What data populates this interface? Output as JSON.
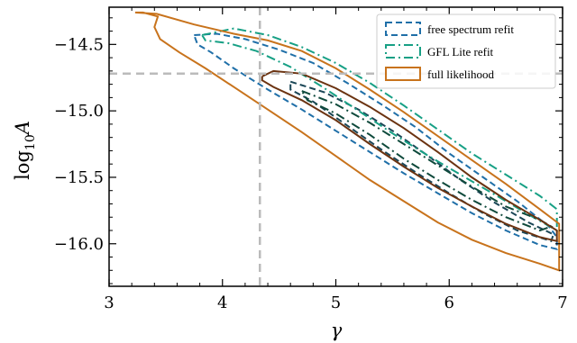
{
  "chart_data": {
    "type": "line",
    "title": "",
    "xlabel": "γ",
    "ylabel_base": "log",
    "ylabel_sub": "10",
    "ylabel_var": "A",
    "xlim": [
      3.0,
      7.0
    ],
    "ylim": [
      -16.32,
      -14.22
    ],
    "xticks": [
      3,
      4,
      5,
      6,
      7
    ],
    "xtick_labels": [
      "3",
      "4",
      "5",
      "6",
      "7"
    ],
    "yticks": [
      -14.5,
      -15.0,
      -15.5,
      -16.0
    ],
    "ytick_labels": [
      "−14.5",
      "−15.0",
      "−15.5",
      "−16.0"
    ],
    "grid": false,
    "legend_position": "top-right",
    "reference_lines": {
      "gamma": 4.33,
      "log10A": -14.72,
      "color": "#bbbbbb"
    },
    "series": [
      {
        "name": "free spectrum refit",
        "line_style": "dashed",
        "colors": [
          "#1f6fa8",
          "#1a4656"
        ],
        "contours": [
          [
            [
              3.75,
              -14.43
            ],
            [
              3.95,
              -14.42
            ],
            [
              4.2,
              -14.46
            ],
            [
              4.5,
              -14.54
            ],
            [
              4.8,
              -14.64
            ],
            [
              5.1,
              -14.79
            ],
            [
              5.4,
              -14.95
            ],
            [
              5.7,
              -15.12
            ],
            [
              6.0,
              -15.32
            ],
            [
              6.3,
              -15.5
            ],
            [
              6.6,
              -15.68
            ],
            [
              6.88,
              -15.87
            ],
            [
              6.95,
              -15.95
            ],
            [
              6.95,
              -16.04
            ],
            [
              6.8,
              -16.01
            ],
            [
              6.5,
              -15.9
            ],
            [
              6.2,
              -15.77
            ],
            [
              5.9,
              -15.62
            ],
            [
              5.6,
              -15.47
            ],
            [
              5.3,
              -15.31
            ],
            [
              5.0,
              -15.15
            ],
            [
              4.7,
              -14.99
            ],
            [
              4.4,
              -14.84
            ],
            [
              4.1,
              -14.68
            ],
            [
              3.9,
              -14.56
            ],
            [
              3.78,
              -14.5
            ],
            [
              3.75,
              -14.43
            ]
          ],
          [
            [
              4.6,
              -14.78
            ],
            [
              4.9,
              -14.86
            ],
            [
              5.2,
              -14.99
            ],
            [
              5.5,
              -15.15
            ],
            [
              5.8,
              -15.33
            ],
            [
              6.1,
              -15.52
            ],
            [
              6.4,
              -15.69
            ],
            [
              6.7,
              -15.84
            ],
            [
              6.92,
              -15.93
            ],
            [
              6.9,
              -15.98
            ],
            [
              6.6,
              -15.9
            ],
            [
              6.3,
              -15.77
            ],
            [
              6.0,
              -15.62
            ],
            [
              5.7,
              -15.46
            ],
            [
              5.4,
              -15.29
            ],
            [
              5.1,
              -15.11
            ],
            [
              4.8,
              -14.93
            ],
            [
              4.6,
              -14.84
            ],
            [
              4.6,
              -14.78
            ]
          ]
        ]
      },
      {
        "name": "GFL Lite refit",
        "line_style": "dashdot",
        "colors": [
          "#17a085",
          "#0f4a3c"
        ],
        "contours": [
          [
            [
              3.82,
              -14.43
            ],
            [
              4.1,
              -14.38
            ],
            [
              4.4,
              -14.43
            ],
            [
              4.7,
              -14.52
            ],
            [
              5.0,
              -14.64
            ],
            [
              5.3,
              -14.79
            ],
            [
              5.6,
              -14.96
            ],
            [
              5.9,
              -15.14
            ],
            [
              6.2,
              -15.32
            ],
            [
              6.5,
              -15.48
            ],
            [
              6.8,
              -15.64
            ],
            [
              6.95,
              -15.74
            ],
            [
              6.95,
              -15.9
            ],
            [
              6.7,
              -15.78
            ],
            [
              6.4,
              -15.63
            ],
            [
              6.1,
              -15.48
            ],
            [
              5.8,
              -15.33
            ],
            [
              5.5,
              -15.17
            ],
            [
              5.2,
              -15.0
            ],
            [
              4.9,
              -14.83
            ],
            [
              4.6,
              -14.67
            ],
            [
              4.3,
              -14.55
            ],
            [
              4.05,
              -14.49
            ],
            [
              3.85,
              -14.47
            ],
            [
              3.82,
              -14.43
            ]
          ],
          [
            [
              4.7,
              -14.85
            ],
            [
              5.0,
              -14.95
            ],
            [
              5.3,
              -15.09
            ],
            [
              5.6,
              -15.25
            ],
            [
              5.9,
              -15.41
            ],
            [
              6.2,
              -15.57
            ],
            [
              6.5,
              -15.72
            ],
            [
              6.8,
              -15.82
            ],
            [
              6.9,
              -15.87
            ],
            [
              6.8,
              -15.9
            ],
            [
              6.5,
              -15.8
            ],
            [
              6.2,
              -15.67
            ],
            [
              5.9,
              -15.52
            ],
            [
              5.6,
              -15.36
            ],
            [
              5.3,
              -15.18
            ],
            [
              5.0,
              -15.02
            ],
            [
              4.75,
              -14.92
            ],
            [
              4.7,
              -14.85
            ]
          ]
        ]
      },
      {
        "name": "full likelihood",
        "line_style": "solid",
        "colors": [
          "#c8731c",
          "#6b3311"
        ],
        "contours": [
          [
            [
              3.23,
              -14.26
            ],
            [
              3.42,
              -14.27
            ],
            [
              3.75,
              -14.35
            ],
            [
              4.1,
              -14.42
            ],
            [
              4.4,
              -14.47
            ],
            [
              4.7,
              -14.55
            ],
            [
              5.0,
              -14.68
            ],
            [
              5.3,
              -14.84
            ],
            [
              5.6,
              -15.01
            ],
            [
              5.9,
              -15.19
            ],
            [
              6.2,
              -15.37
            ],
            [
              6.5,
              -15.55
            ],
            [
              6.8,
              -15.74
            ],
            [
              6.97,
              -15.85
            ],
            [
              6.97,
              -16.2
            ],
            [
              6.8,
              -16.15
            ],
            [
              6.5,
              -16.07
            ],
            [
              6.2,
              -15.97
            ],
            [
              5.9,
              -15.84
            ],
            [
              5.6,
              -15.68
            ],
            [
              5.3,
              -15.52
            ],
            [
              5.0,
              -15.34
            ],
            [
              4.7,
              -15.16
            ],
            [
              4.4,
              -14.99
            ],
            [
              4.1,
              -14.82
            ],
            [
              3.85,
              -14.68
            ],
            [
              3.62,
              -14.56
            ],
            [
              3.45,
              -14.46
            ],
            [
              3.4,
              -14.37
            ],
            [
              3.43,
              -14.29
            ],
            [
              3.3,
              -14.26
            ],
            [
              3.23,
              -14.26
            ]
          ],
          [
            [
              4.35,
              -14.74
            ],
            [
              4.45,
              -14.7
            ],
            [
              4.7,
              -14.72
            ],
            [
              5.0,
              -14.83
            ],
            [
              5.3,
              -14.97
            ],
            [
              5.6,
              -15.13
            ],
            [
              5.9,
              -15.31
            ],
            [
              6.2,
              -15.5
            ],
            [
              6.5,
              -15.67
            ],
            [
              6.8,
              -15.82
            ],
            [
              6.95,
              -15.9
            ],
            [
              6.95,
              -15.98
            ],
            [
              6.8,
              -15.95
            ],
            [
              6.5,
              -15.85
            ],
            [
              6.2,
              -15.72
            ],
            [
              5.9,
              -15.58
            ],
            [
              5.6,
              -15.42
            ],
            [
              5.3,
              -15.25
            ],
            [
              5.0,
              -15.07
            ],
            [
              4.7,
              -14.92
            ],
            [
              4.45,
              -14.82
            ],
            [
              4.35,
              -14.77
            ],
            [
              4.35,
              -14.74
            ]
          ]
        ]
      }
    ]
  }
}
